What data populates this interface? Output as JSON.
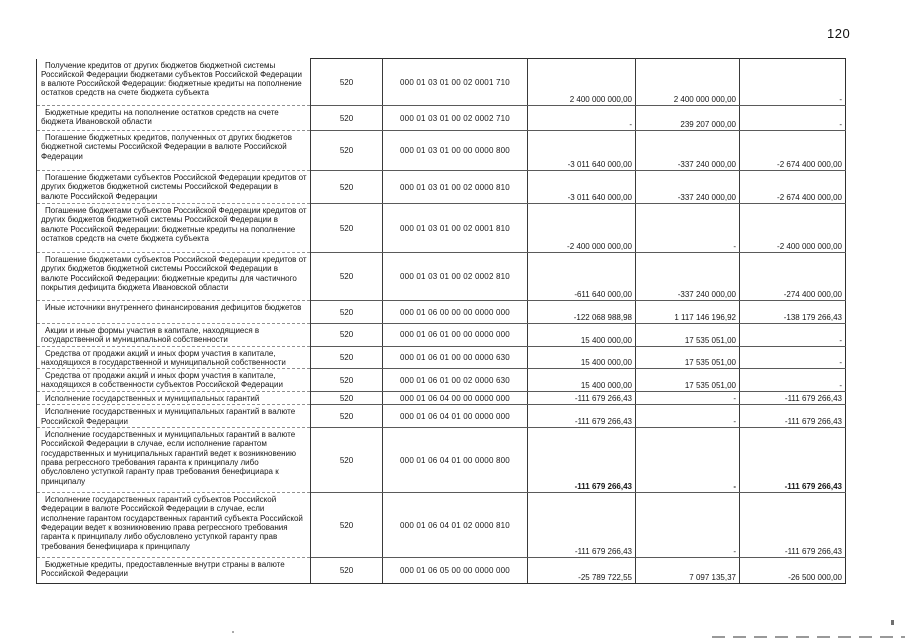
{
  "page": {
    "number": "120"
  },
  "table": {
    "rows": [
      {
        "name": "Получение кредитов от других бюджетов бюджетной системы Российской Федерации бюджетами субъектов Российской Федерации в валюте Российской Федерации: бюджетные кредиты на пополнение остатков средств на счете бюджета субъекта",
        "code": "520",
        "classification": "000 01 03 01 00 02 0001 710",
        "amounts": [
          "2 400 000 000,00",
          "2 400 000 000,00",
          "-"
        ],
        "bold": false
      },
      {
        "name": "Бюджетные кредиты на пополнение остатков средств на счете бюджета Ивановской области",
        "code": "520",
        "classification": "000 01 03 01 00 02 0002 710",
        "amounts": [
          "-",
          "239 207 000,00",
          "-"
        ],
        "bold": false
      },
      {
        "name": "Погашение бюджетных кредитов, полученных от других бюджетов бюджетной системы Российской Федерации в валюте Российской Федерации",
        "code": "520",
        "classification": "000 01 03 01 00 00 0000 800",
        "amounts": [
          "-3 011 640 000,00",
          "-337 240 000,00",
          "-2 674 400 000,00"
        ],
        "bold": false
      },
      {
        "name": "Погашение бюджетами субъектов Российской Федерации кредитов от других бюджетов бюджетной системы Российской Федерации в валюте Российской Федерации",
        "code": "520",
        "classification": "000 01 03 01 00 02 0000 810",
        "amounts": [
          "-3 011 640 000,00",
          "-337 240 000,00",
          "-2 674 400 000,00"
        ],
        "bold": false
      },
      {
        "name": "Погашение бюджетами субъектов Российской Федерации кредитов от других бюджетов бюджетной системы Российской Федерации в валюте Российской Федерации: бюджетные кредиты на пополнение остатков средств на счете бюджета субъекта",
        "code": "520",
        "classification": "000 01 03 01 00 02 0001 810",
        "amounts": [
          "-2 400 000 000,00",
          "-",
          "-2 400 000 000,00"
        ],
        "bold": false
      },
      {
        "name": "Погашение бюджетами субъектов Российской Федерации кредитов от других бюджетов бюджетной системы Российской Федерации в валюте Российской Федерации: бюджетные кредиты для частичного покрытия дефицита бюджета Ивановской области",
        "code": "520",
        "classification": "000 01 03 01 00 02 0002 810",
        "amounts": [
          "-611 640 000,00",
          "-337 240 000,00",
          "-274 400 000,00"
        ],
        "bold": false
      },
      {
        "name": "Иные источники внутреннего финансирования дефицитов бюджетов",
        "code": "520",
        "classification": "000 01 06 00 00 00 0000 000",
        "amounts": [
          "-122 068 988,98",
          "1 117 146 196,92",
          "-138 179 266,43"
        ],
        "bold": false
      },
      {
        "name": "Акции и иные формы участия в капитале, находящиеся в государственной и муниципальной собственности",
        "code": "520",
        "classification": "000 01 06 01 00 00 0000 000",
        "amounts": [
          "15 400 000,00",
          "17 535 051,00",
          "-"
        ],
        "bold": false
      },
      {
        "name": "Средства от продажи акций и иных форм участия в капитале, находящихся в государственной и муниципальной собственности",
        "code": "520",
        "classification": "000 01 06 01 00 00 0000 630",
        "amounts": [
          "15 400 000,00",
          "17 535 051,00",
          "-"
        ],
        "bold": false
      },
      {
        "name": "Средства от продажи акций и иных форм участия в капитале, находящихся в собственности субъектов Российской Федерации",
        "code": "520",
        "classification": "000 01 06 01 00 02 0000 630",
        "amounts": [
          "15 400 000,00",
          "17 535 051,00",
          "-"
        ],
        "bold": false
      },
      {
        "name": "Исполнение государственных и муниципальных гарантий",
        "code": "520",
        "classification": "000 01 06 04 00 00 0000 000",
        "amounts": [
          "-111 679 266,43",
          "-",
          "-111 679 266,43"
        ],
        "bold": false
      },
      {
        "name": "Исполнение государственных и муниципальных гарантий в валюте Российской Федерации",
        "code": "520",
        "classification": "000 01 06 04 01 00 0000 000",
        "amounts": [
          "-111 679 266,43",
          "-",
          "-111 679 266,43"
        ],
        "bold": false
      },
      {
        "name": "Исполнение государственных и муниципальных гарантий в валюте Российской Федерации в случае, если исполнение гарантом государственных и муниципальных гарантий ведет к возникновению права регрессного требования гаранта к принципалу либо обусловлено уступкой гаранту прав требования бенефициара к принципалу",
        "code": "520",
        "classification": "000 01 06 04 01 00 0000 800",
        "amounts": [
          "-111 679 266,43",
          "-",
          "-111 679 266,43"
        ],
        "bold": true
      },
      {
        "name": "Исполнение государственных гарантий субъектов Российской Федерации в валюте Российской Федерации в случае, если исполнение гарантом государственных гарантий субъекта Российской Федерации ведет к возникновению права регрессного требования гаранта к принципалу либо обусловлено уступкой гаранту прав требования бенефициара к принципалу",
        "code": "520",
        "classification": "000 01 06 04 01 02 0000 810",
        "amounts": [
          "-111 679 266,43",
          "-",
          "-111 679 266,43"
        ],
        "bold": false
      },
      {
        "name": "Бюджетные кредиты, предоставленные внутри страны в валюте Российской Федерации",
        "code": "520",
        "classification": "000 01 06 05 00 00 0000 000",
        "amounts": [
          "-25 789 722,55",
          "7 097 135,37",
          "-26 500 000,00"
        ],
        "bold": false
      }
    ]
  }
}
